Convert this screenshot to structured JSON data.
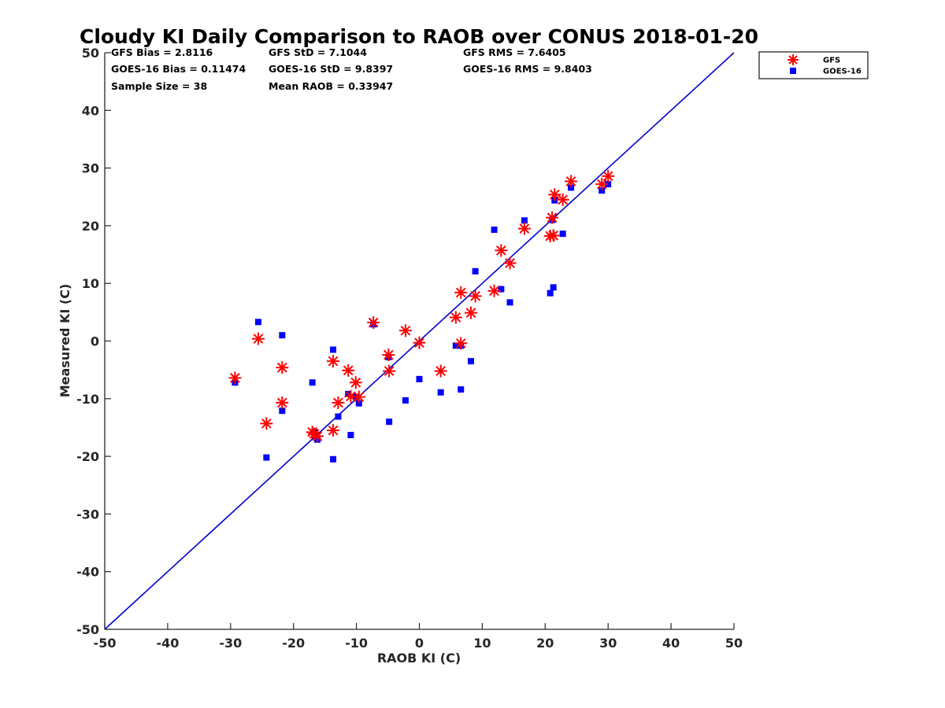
{
  "chart_data": {
    "type": "scatter",
    "title": "Cloudy KI Daily Comparison to RAOB over CONUS 2018-01-20",
    "xlabel": "RAOB KI (C)",
    "ylabel": "Measured KI (C)",
    "xlim": [
      -50,
      50
    ],
    "ylim": [
      -50,
      50
    ],
    "xticks": [
      -50,
      -40,
      -30,
      -20,
      -10,
      0,
      10,
      20,
      30,
      40,
      50
    ],
    "yticks": [
      -50,
      -40,
      -30,
      -20,
      -10,
      0,
      10,
      20,
      30,
      40,
      50
    ],
    "grid": false,
    "legend_position": "top-right outside",
    "reference_line": {
      "x": [
        -50,
        50
      ],
      "y": [
        -50,
        50
      ],
      "color": "#0000cc"
    },
    "stats": [
      [
        "GFS Bias = 2.8116",
        "GFS StD = 7.1044",
        "GFS RMS = 7.6405"
      ],
      [
        "GOES-16 Bias = 0.11474",
        "GOES-16 StD = 9.8397",
        "GOES-16 RMS = 9.8403"
      ],
      [
        "Sample Size = 38",
        "Mean RAOB = 0.33947",
        ""
      ]
    ],
    "series": [
      {
        "name": "GFS",
        "marker": "asterisk",
        "color": "#ff0000",
        "points": [
          [
            -29.3,
            -6.4
          ],
          [
            -25.6,
            0.4
          ],
          [
            -24.3,
            -14.3
          ],
          [
            -21.8,
            -4.6
          ],
          [
            -21.8,
            -10.7
          ],
          [
            -17.0,
            -15.8
          ],
          [
            -16.7,
            -16.1
          ],
          [
            -16.2,
            -16.5
          ],
          [
            -13.7,
            -3.5
          ],
          [
            -13.7,
            -15.5
          ],
          [
            -12.9,
            -10.7
          ],
          [
            -11.3,
            -5.1
          ],
          [
            -10.9,
            -9.6
          ],
          [
            -10.1,
            -7.2
          ],
          [
            -9.6,
            -9.7
          ],
          [
            -7.3,
            3.2
          ],
          [
            -4.9,
            -2.4
          ],
          [
            -4.8,
            -5.2
          ],
          [
            -2.2,
            1.8
          ],
          [
            0.0,
            -0.3
          ],
          [
            3.4,
            -5.2
          ],
          [
            5.8,
            4.1
          ],
          [
            6.6,
            8.4
          ],
          [
            6.6,
            -0.4
          ],
          [
            8.2,
            4.9
          ],
          [
            8.9,
            7.8
          ],
          [
            11.9,
            8.7
          ],
          [
            13.0,
            15.7
          ],
          [
            14.4,
            13.5
          ],
          [
            16.7,
            19.5
          ],
          [
            20.8,
            18.2
          ],
          [
            21.1,
            21.4
          ],
          [
            21.3,
            18.3
          ],
          [
            21.5,
            25.4
          ],
          [
            22.8,
            24.5
          ],
          [
            24.1,
            27.7
          ],
          [
            29.0,
            27.2
          ],
          [
            30.0,
            28.6
          ]
        ]
      },
      {
        "name": "GOES-16",
        "marker": "square",
        "color": "#0000ff",
        "points": [
          [
            -29.3,
            -7.2
          ],
          [
            -25.6,
            3.3
          ],
          [
            -24.3,
            -20.2
          ],
          [
            -21.8,
            1.0
          ],
          [
            -21.8,
            -12.1
          ],
          [
            -17.0,
            -7.2
          ],
          [
            -16.7,
            -15.8
          ],
          [
            -16.2,
            -17.1
          ],
          [
            -13.7,
            -1.5
          ],
          [
            -13.7,
            -20.5
          ],
          [
            -12.9,
            -13.1
          ],
          [
            -11.3,
            -9.2
          ],
          [
            -10.9,
            -16.3
          ],
          [
            -10.1,
            -9.7
          ],
          [
            -9.6,
            -10.8
          ],
          [
            -7.3,
            2.9
          ],
          [
            -4.9,
            -2.8
          ],
          [
            -4.8,
            -14.0
          ],
          [
            -2.2,
            -10.3
          ],
          [
            0.0,
            -6.6
          ],
          [
            3.4,
            -8.9
          ],
          [
            5.8,
            -0.8
          ],
          [
            6.6,
            -0.8
          ],
          [
            6.6,
            -8.4
          ],
          [
            8.2,
            -3.5
          ],
          [
            8.9,
            12.1
          ],
          [
            11.9,
            19.3
          ],
          [
            13.0,
            9.0
          ],
          [
            14.4,
            6.7
          ],
          [
            16.7,
            20.9
          ],
          [
            20.8,
            8.3
          ],
          [
            21.1,
            21.0
          ],
          [
            21.3,
            9.3
          ],
          [
            21.5,
            24.4
          ],
          [
            22.8,
            18.6
          ],
          [
            24.1,
            26.6
          ],
          [
            29.0,
            26.1
          ],
          [
            30.0,
            27.2
          ]
        ]
      }
    ]
  }
}
